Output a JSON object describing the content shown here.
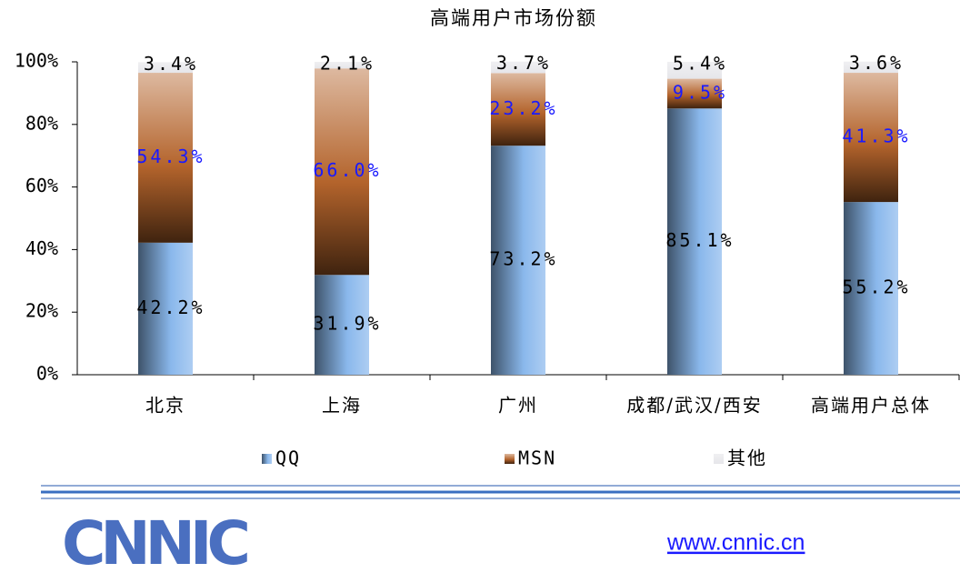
{
  "chart_data": {
    "type": "bar",
    "stacked": true,
    "title": "高端用户市场份额",
    "categories": [
      "北京",
      "上海",
      "广州",
      "成都/武汉/西安",
      "高端用户总体"
    ],
    "series": [
      {
        "name": "QQ",
        "color": "#8ab8ec",
        "values": [
          42.2,
          31.9,
          73.2,
          85.1,
          55.2
        ],
        "value_labels": [
          "42.2%",
          "31.9%",
          "73.2%",
          "85.1%",
          "55.2%"
        ],
        "label_color": "#000000"
      },
      {
        "name": "MSN",
        "color": "#b4642c",
        "values": [
          54.3,
          66.0,
          23.2,
          9.5,
          41.3
        ],
        "value_labels": [
          "54.3%",
          "66.0%",
          "23.2%",
          "9.5%",
          "41.3%"
        ],
        "label_color": "#1a1aff"
      },
      {
        "name": "其他",
        "color": "#e6e6ea",
        "values": [
          3.4,
          2.1,
          3.7,
          5.4,
          3.6
        ],
        "value_labels": [
          "3.4%",
          "2.1%",
          "3.7%",
          "5.4%",
          "3.6%"
        ],
        "label_color": "#000000"
      }
    ],
    "ylim": [
      0,
      100
    ],
    "yticks": [
      {
        "value": 0,
        "label": "0%"
      },
      {
        "value": 20,
        "label": "20%"
      },
      {
        "value": 40,
        "label": "40%"
      },
      {
        "value": 60,
        "label": "60%"
      },
      {
        "value": 80,
        "label": "80%"
      },
      {
        "value": 100,
        "label": "100%"
      }
    ],
    "legend": "bottom"
  },
  "footer": {
    "logo": "CNNIC",
    "url": "www.cnnic.cn"
  }
}
